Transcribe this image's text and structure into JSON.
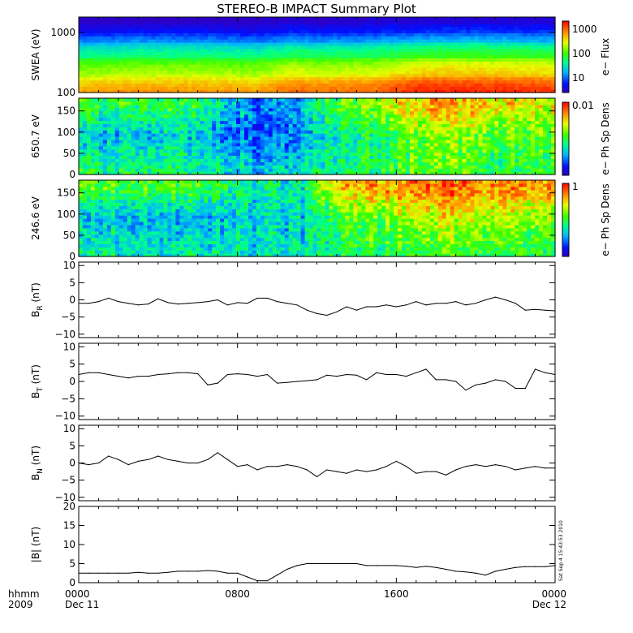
{
  "title": "STEREO-B IMPACT Summary Plot",
  "time_axis": {
    "row_label_1": "hhmm",
    "row_label_2": "2009",
    "ticks": [
      {
        "label": "0000",
        "date": "Dec 11"
      },
      {
        "label": "0800",
        "date": ""
      },
      {
        "label": "1600",
        "date": ""
      },
      {
        "label": "0000",
        "date": "Dec 12"
      }
    ]
  },
  "colorbars": [
    {
      "title": "e− Flux",
      "ticks": [
        "1000",
        "100",
        "10"
      ]
    },
    {
      "title": "e− Ph Sp Dens",
      "ticks": [
        "0.01"
      ]
    },
    {
      "title": "e− Ph Sp Dens",
      "ticks": [
        "1"
      ]
    }
  ],
  "timestamp": "Sat Sep  4 15:43:53 2010",
  "colors": {
    "line": "#000000",
    "axes": "#000000"
  },
  "chart_data": [
    {
      "type": "heatmap",
      "ylabel": "SWEA (eV)",
      "yscale": "log",
      "yticks": [
        "1000",
        "100"
      ],
      "ylim": [
        100,
        1800
      ],
      "x": [
        "00:00",
        "03:00",
        "06:00",
        "09:00",
        "11:00",
        "12:00",
        "15:00",
        "17:00",
        "20:00",
        "24:00"
      ],
      "y": [
        100,
        200,
        400,
        700,
        1000,
        1500
      ],
      "z": [
        [
          900,
          250,
          60,
          15,
          6,
          3
        ],
        [
          1000,
          280,
          70,
          18,
          7,
          3
        ],
        [
          1000,
          280,
          70,
          17,
          7,
          3
        ],
        [
          900,
          250,
          60,
          15,
          6,
          3
        ],
        [
          1500,
          400,
          90,
          20,
          8,
          4
        ],
        [
          1300,
          330,
          80,
          18,
          7,
          3
        ],
        [
          1500,
          380,
          85,
          20,
          8,
          4
        ],
        [
          2500,
          600,
          120,
          25,
          9,
          4
        ],
        [
          2500,
          650,
          130,
          28,
          10,
          4
        ],
        [
          2200,
          550,
          110,
          22,
          9,
          4
        ]
      ]
    },
    {
      "type": "heatmap",
      "ylabel": "650.7 eV",
      "yticks": [
        "150",
        "100",
        "50",
        "0"
      ],
      "ylim": [
        0,
        180
      ],
      "x": [
        "00:00",
        "03:00",
        "06:00",
        "09:00",
        "11:00",
        "13:00",
        "16:00",
        "18:00",
        "21:00",
        "24:00"
      ],
      "y": [
        15,
        90,
        165
      ],
      "z": [
        [
          0.45,
          0.3,
          0.5
        ],
        [
          0.45,
          0.3,
          0.5
        ],
        [
          0.45,
          0.35,
          0.5
        ],
        [
          0.3,
          0.15,
          0.2
        ],
        [
          0.35,
          0.25,
          0.3
        ],
        [
          0.45,
          0.4,
          0.55
        ],
        [
          0.5,
          0.5,
          0.7
        ],
        [
          0.55,
          0.6,
          0.8
        ],
        [
          0.5,
          0.55,
          0.75
        ],
        [
          0.5,
          0.55,
          0.7
        ]
      ]
    },
    {
      "type": "heatmap",
      "ylabel": "246.6 eV",
      "yticks": [
        "150",
        "100",
        "50",
        "0"
      ],
      "ylim": [
        0,
        180
      ],
      "x": [
        "00:00",
        "03:00",
        "06:00",
        "09:00",
        "11:00",
        "13:00",
        "16:00",
        "18:00",
        "21:00",
        "24:00"
      ],
      "y": [
        15,
        90,
        165
      ],
      "z": [
        [
          0.4,
          0.3,
          0.55
        ],
        [
          0.4,
          0.3,
          0.55
        ],
        [
          0.4,
          0.3,
          0.55
        ],
        [
          0.35,
          0.35,
          0.4
        ],
        [
          0.35,
          0.3,
          0.35
        ],
        [
          0.45,
          0.5,
          0.75
        ],
        [
          0.5,
          0.6,
          0.85
        ],
        [
          0.55,
          0.7,
          0.9
        ],
        [
          0.5,
          0.65,
          0.85
        ],
        [
          0.5,
          0.6,
          0.8
        ]
      ]
    },
    {
      "type": "line",
      "ylabel": "B",
      "ylabel_sub": "R",
      "ylabel_unit": "(nT)",
      "yticks": [
        "10",
        "5",
        "0",
        "−5",
        "−10"
      ],
      "ylim": [
        -11,
        11
      ],
      "x": [
        0,
        0.5,
        1,
        1.5,
        2,
        2.5,
        3,
        3.5,
        4,
        4.5,
        5,
        5.5,
        6,
        6.5,
        7,
        7.5,
        8,
        8.5,
        9,
        9.5,
        10,
        10.5,
        11,
        11.5,
        12,
        12.5,
        13,
        13.5,
        14,
        14.5,
        15,
        15.5,
        16,
        16.5,
        17,
        17.5,
        18,
        18.5,
        19,
        19.5,
        20,
        20.5,
        21,
        21.5,
        22,
        22.5,
        23,
        23.5,
        24
      ],
      "y": [
        -1,
        -1,
        -0.5,
        0.5,
        -0.5,
        -1,
        -1.5,
        -1.2,
        0.3,
        -0.8,
        -1.2,
        -1,
        -0.8,
        -0.5,
        0,
        -1.5,
        -0.8,
        -1,
        0.5,
        0.5,
        -0.5,
        -1,
        -1.5,
        -3,
        -4,
        -4.5,
        -3.5,
        -2,
        -3,
        -2,
        -2,
        -1.5,
        -2,
        -1.5,
        -0.5,
        -1.5,
        -1,
        -1,
        -0.5,
        -1.5,
        -1,
        0,
        0.8,
        0,
        -1,
        -3,
        -2.8,
        -3,
        -3.2
      ]
    },
    {
      "type": "line",
      "ylabel": "B",
      "ylabel_sub": "T",
      "ylabel_unit": "(nT)",
      "yticks": [
        "10",
        "5",
        "0",
        "−5",
        "−10"
      ],
      "ylim": [
        -11,
        11
      ],
      "x": [
        0,
        0.5,
        1,
        1.5,
        2,
        2.5,
        3,
        3.5,
        4,
        4.5,
        5,
        5.5,
        6,
        6.5,
        7,
        7.5,
        8,
        8.5,
        9,
        9.5,
        10,
        10.5,
        11,
        11.5,
        12,
        12.5,
        13,
        13.5,
        14,
        14.5,
        15,
        15.5,
        16,
        16.5,
        17,
        17.5,
        18,
        18.5,
        19,
        19.5,
        20,
        20.5,
        21,
        21.5,
        22,
        22.5,
        23,
        23.5,
        24
      ],
      "y": [
        2,
        2.5,
        2.5,
        2,
        1.5,
        1,
        1.5,
        1.5,
        2,
        2.2,
        2.5,
        2.5,
        2.2,
        -1,
        -0.5,
        2,
        2.2,
        2,
        1.5,
        2,
        -0.5,
        -0.3,
        0,
        0.2,
        0.5,
        1.8,
        1.5,
        2,
        1.8,
        0.5,
        2.5,
        2,
        2,
        1.5,
        2.5,
        3.5,
        0.5,
        0.5,
        0,
        -2.5,
        -1,
        -0.5,
        0.5,
        0,
        -2,
        -2,
        3.5,
        2.5,
        2
      ]
    },
    {
      "type": "line",
      "ylabel": "B",
      "ylabel_sub": "N",
      "ylabel_unit": "(nT)",
      "yticks": [
        "10",
        "5",
        "0",
        "−5",
        "−10"
      ],
      "ylim": [
        -11,
        11
      ],
      "x": [
        0,
        0.5,
        1,
        1.5,
        2,
        2.5,
        3,
        3.5,
        4,
        4.5,
        5,
        5.5,
        6,
        6.5,
        7,
        7.5,
        8,
        8.5,
        9,
        9.5,
        10,
        10.5,
        11,
        11.5,
        12,
        12.5,
        13,
        13.5,
        14,
        14.5,
        15,
        15.5,
        16,
        16.5,
        17,
        17.5,
        18,
        18.5,
        19,
        19.5,
        20,
        20.5,
        21,
        21.5,
        22,
        22.5,
        23,
        23.5,
        24
      ],
      "y": [
        0,
        -0.5,
        0,
        2,
        1,
        -0.5,
        0.5,
        1,
        2,
        1,
        0.5,
        0,
        0,
        1,
        3,
        1,
        -1,
        -0.5,
        -2,
        -1,
        -1,
        -0.5,
        -1,
        -2,
        -4,
        -2,
        -2.5,
        -3,
        -2,
        -2.5,
        -2,
        -1,
        0.5,
        -1,
        -3,
        -2.5,
        -2.5,
        -3.5,
        -2,
        -1,
        -0.5,
        -1,
        -0.5,
        -1,
        -2,
        -1.5,
        -1,
        -1.5,
        -1.5
      ]
    },
    {
      "type": "line",
      "ylabel": "|B|",
      "ylabel_unit": "(nT)",
      "yticks": [
        "20",
        "15",
        "10",
        "5",
        "0"
      ],
      "ylim": [
        0,
        20
      ],
      "x": [
        0,
        0.5,
        1,
        1.5,
        2,
        2.5,
        3,
        3.5,
        4,
        4.5,
        5,
        5.5,
        6,
        6.5,
        7,
        7.5,
        8,
        8.5,
        9,
        9.5,
        10,
        10.5,
        11,
        11.5,
        12,
        12.5,
        13,
        13.5,
        14,
        14.5,
        15,
        15.5,
        16,
        16.5,
        17,
        17.5,
        18,
        18.5,
        19,
        19.5,
        20,
        20.5,
        21,
        21.5,
        22,
        22.5,
        23,
        23.5,
        24
      ],
      "y": [
        2.5,
        2.5,
        2.5,
        2.5,
        2.5,
        2.5,
        2.7,
        2.5,
        2.5,
        2.7,
        3,
        3,
        3,
        3.2,
        3,
        2.5,
        2.5,
        1.5,
        0.5,
        0.5,
        2,
        3.5,
        4.5,
        5,
        5,
        5,
        5,
        5,
        5,
        4.5,
        4.5,
        4.5,
        4.5,
        4.3,
        4,
        4.3,
        4,
        3.5,
        3,
        2.8,
        2.5,
        2,
        3,
        3.5,
        4,
        4.2,
        4.2,
        4.2,
        4.5
      ]
    }
  ]
}
